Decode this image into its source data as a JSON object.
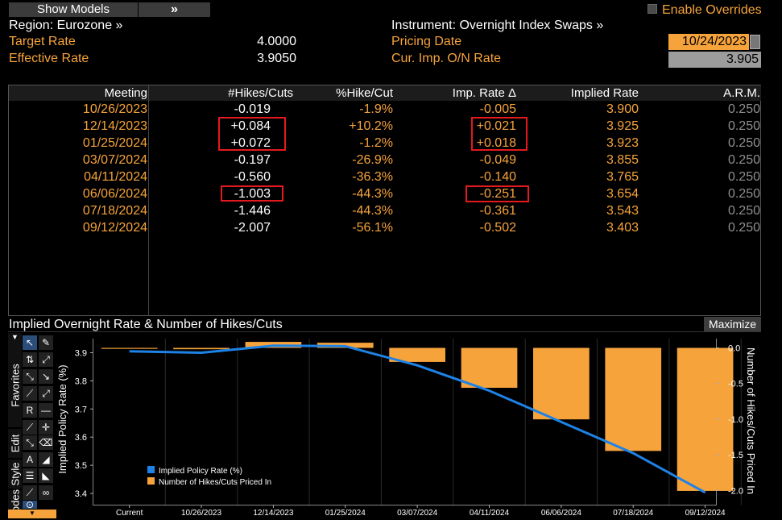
{
  "header": {
    "show_models_label": "Show Models",
    "next_label": "»",
    "enable_overrides_label": "Enable Overrides",
    "region_label": "Region: Eurozone »",
    "target_rate_label": "Target Rate",
    "target_rate_value": "4.0000",
    "effective_rate_label": "Effective Rate",
    "effective_rate_value": "3.9050",
    "instrument_label": "Instrument: Overnight Index Swaps »",
    "pricing_date_label": "Pricing Date",
    "pricing_date_value": "10/24/2023",
    "cur_imp_label": "Cur. Imp. O/N Rate",
    "cur_imp_value": "3.905"
  },
  "table": {
    "columns": [
      "Meeting",
      "#Hikes/Cuts",
      "%Hike/Cut",
      "Imp. Rate Δ",
      "Implied Rate",
      "A.R.M."
    ],
    "rows": [
      {
        "meeting": "10/26/2023",
        "hikes": "-0.019",
        "pct": "-1.9%",
        "delta": "-0.005",
        "implied": "3.900",
        "arm": "0.250"
      },
      {
        "meeting": "12/14/2023",
        "hikes": "+0.084",
        "pct": "+10.2%",
        "delta": "+0.021",
        "implied": "3.925",
        "arm": "0.250"
      },
      {
        "meeting": "01/25/2024",
        "hikes": "+0.072",
        "pct": "-1.2%",
        "delta": "+0.018",
        "implied": "3.923",
        "arm": "0.250"
      },
      {
        "meeting": "03/07/2024",
        "hikes": "-0.197",
        "pct": "-26.9%",
        "delta": "-0.049",
        "implied": "3.855",
        "arm": "0.250"
      },
      {
        "meeting": "04/11/2024",
        "hikes": "-0.560",
        "pct": "-36.3%",
        "delta": "-0.140",
        "implied": "3.765",
        "arm": "0.250"
      },
      {
        "meeting": "06/06/2024",
        "hikes": "-1.003",
        "pct": "-44.3%",
        "delta": "-0.251",
        "implied": "3.654",
        "arm": "0.250"
      },
      {
        "meeting": "07/18/2024",
        "hikes": "-1.446",
        "pct": "-44.3%",
        "delta": "-0.361",
        "implied": "3.543",
        "arm": "0.250"
      },
      {
        "meeting": "09/12/2024",
        "hikes": "-2.007",
        "pct": "-56.1%",
        "delta": "-0.502",
        "implied": "3.403",
        "arm": "0.250"
      }
    ]
  },
  "chart_panel": {
    "title": "Implied Overnight Rate & Number of Hikes/Cuts",
    "maximize_label": "Maximize",
    "tabs": [
      "Favorites",
      "Edit",
      "Style",
      "odes"
    ]
  },
  "chart_data": {
    "type": "bar",
    "title": "Implied Overnight Rate & Number of Hikes/Cuts",
    "categories": [
      "Current",
      "10/26/2023",
      "12/14/2023",
      "01/25/2024",
      "03/07/2024",
      "04/11/2024",
      "06/06/2024",
      "07/18/2024",
      "09/12/2024"
    ],
    "ylabel_left": "Implied Policy Rate (%)",
    "ylabel_right": "Number of Hikes/Cuts Priced In",
    "ylim_left": [
      3.36,
      3.95
    ],
    "ylim_right": [
      -2.2,
      0.13
    ],
    "yticks_left": [
      "3.9",
      "3.8",
      "3.7",
      "3.6",
      "3.5",
      "3.4"
    ],
    "yticks_right": [
      "0.0",
      "-0.5",
      "-1.0",
      "-1.5",
      "-2.0"
    ],
    "legend_position": "bottom-left",
    "series": [
      {
        "name": "Implied Policy Rate (%)",
        "type": "line",
        "axis": "left",
        "color": "#1e82e6",
        "values": [
          3.905,
          3.9,
          3.925,
          3.923,
          3.855,
          3.765,
          3.654,
          3.543,
          3.403
        ]
      },
      {
        "name": "Number of Hikes/Cuts Priced In",
        "type": "bar",
        "axis": "right",
        "color": "#f6a33b",
        "values": [
          0,
          -0.019,
          0.084,
          0.072,
          -0.197,
          -0.56,
          -1.003,
          -1.446,
          -2.007
        ]
      }
    ]
  },
  "colors": {
    "accent_orange": "#f6a33b",
    "line_blue": "#1e82e6",
    "highlight_red": "#e5191e"
  }
}
